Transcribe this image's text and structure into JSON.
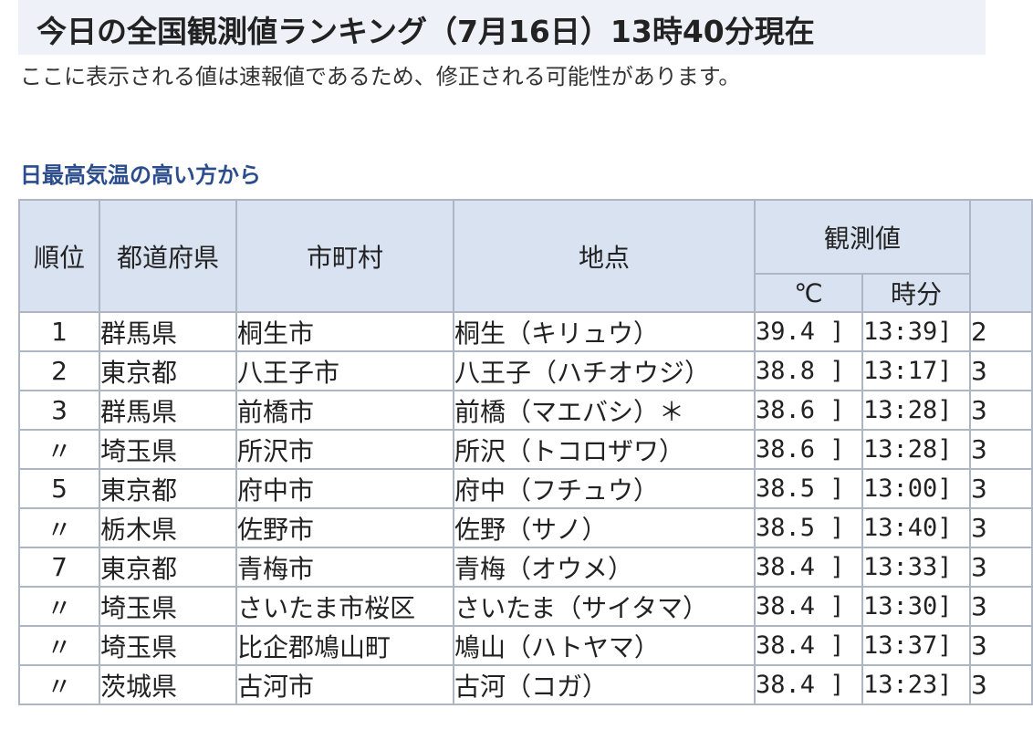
{
  "header": {
    "title": "今日の全国観測値ランキング（7月16日）13時40分現在",
    "notice": "ここに表示される値は速報値であるため、修正される可能性があります。"
  },
  "section": {
    "heading": "日最高気温の高い方から"
  },
  "table": {
    "headers": {
      "rank": "順位",
      "prefecture": "都道府県",
      "city": "市町村",
      "station": "地点",
      "observed": "観測値",
      "celsius": "℃",
      "time": "時分"
    },
    "rows": [
      {
        "rank": "1",
        "prefecture": "群馬県",
        "city": "桐生市",
        "station": "桐生（キリュウ）",
        "temp": "39.4 ]",
        "time": "13:39]",
        "extra": "2"
      },
      {
        "rank": "2",
        "prefecture": "東京都",
        "city": "八王子市",
        "station": "八王子（ハチオウジ）",
        "temp": "38.8 ]",
        "time": "13:17]",
        "extra": "3"
      },
      {
        "rank": "3",
        "prefecture": "群馬県",
        "city": "前橋市",
        "station": "前橋（マエバシ）＊",
        "temp": "38.6 ]",
        "time": "13:28]",
        "extra": "3"
      },
      {
        "rank": "〃",
        "prefecture": "埼玉県",
        "city": "所沢市",
        "station": "所沢（トコロザワ）",
        "temp": "38.6 ]",
        "time": "13:28]",
        "extra": "3"
      },
      {
        "rank": "5",
        "prefecture": "東京都",
        "city": "府中市",
        "station": "府中（フチュウ）",
        "temp": "38.5 ]",
        "time": "13:00]",
        "extra": "3"
      },
      {
        "rank": "〃",
        "prefecture": "栃木県",
        "city": "佐野市",
        "station": "佐野（サノ）",
        "temp": "38.5 ]",
        "time": "13:40]",
        "extra": "3"
      },
      {
        "rank": "7",
        "prefecture": "東京都",
        "city": "青梅市",
        "station": "青梅（オウメ）",
        "temp": "38.4 ]",
        "time": "13:33]",
        "extra": "3"
      },
      {
        "rank": "〃",
        "prefecture": "埼玉県",
        "city": "さいたま市桜区",
        "station": "さいたま（サイタマ）",
        "temp": "38.4 ]",
        "time": "13:30]",
        "extra": "3"
      },
      {
        "rank": "〃",
        "prefecture": "埼玉県",
        "city": "比企郡鳩山町",
        "station": "鳩山（ハトヤマ）",
        "temp": "38.4 ]",
        "time": "13:37]",
        "extra": "3"
      },
      {
        "rank": "〃",
        "prefecture": "茨城県",
        "city": "古河市",
        "station": "古河（コガ）",
        "temp": "38.4 ]",
        "time": "13:23]",
        "extra": "3"
      }
    ]
  }
}
